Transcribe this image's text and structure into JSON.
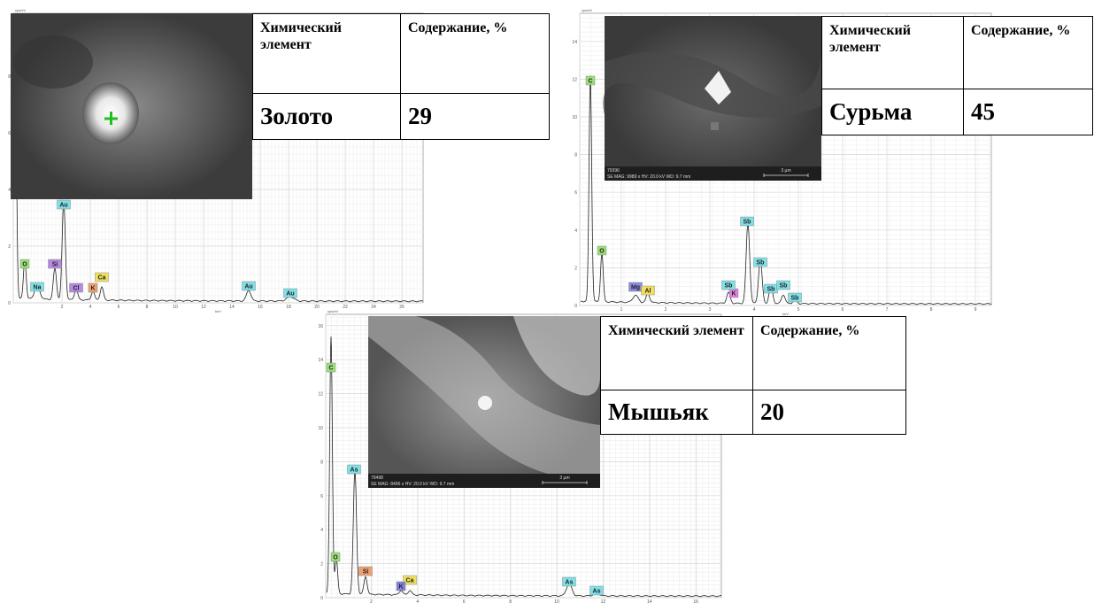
{
  "panels": [
    {
      "table": {
        "headers": [
          "Химический элемент",
          "Содержание, %"
        ],
        "element": "Золото",
        "content": 29
      },
      "image": null,
      "spectrum": {
        "y_unit": "cps/eV",
        "x_unit": "keV",
        "yticks": [
          0,
          2,
          4,
          6,
          8
        ],
        "xticks": [
          2,
          4,
          6,
          8,
          10,
          12,
          14,
          16,
          18,
          20,
          22,
          24,
          26
        ],
        "peaks": [
          {
            "label": "O",
            "color": "#9be07a"
          },
          {
            "label": "Na",
            "color": "#7fe0e6"
          },
          {
            "label": "Si",
            "color": "#b48be0"
          },
          {
            "label": "Au",
            "color": "#7fe0e6"
          },
          {
            "label": "Cl",
            "color": "#b48be0"
          },
          {
            "label": "K",
            "color": "#f0a070"
          },
          {
            "label": "Ca",
            "color": "#f0e060"
          },
          {
            "label": "Au",
            "color": "#7fe0e6"
          },
          {
            "label": "Au",
            "color": "#7fe0e6"
          }
        ]
      }
    },
    {
      "table": {
        "headers": [
          "Химический элемент",
          "Содержание, %"
        ],
        "element": "Сурьма",
        "content": 45
      },
      "image": {
        "id": "79396",
        "info": "SE MAG: 9989 x HV: 20.0 kV WD: 9.7 mm",
        "scale": "3 µm"
      },
      "spectrum": {
        "y_unit": "cps/eV",
        "x_unit": "keV",
        "yticks": [
          0,
          2,
          4,
          6,
          8,
          10,
          12,
          14
        ],
        "xticks": [
          1,
          2,
          3,
          4,
          5,
          6,
          7,
          8,
          9
        ],
        "peaks": [
          {
            "label": "C",
            "color": "#9be07a"
          },
          {
            "label": "O",
            "color": "#9be07a"
          },
          {
            "label": "Mg",
            "color": "#8c8ce6"
          },
          {
            "label": "Al",
            "color": "#f0e060"
          },
          {
            "label": "Sb",
            "color": "#7fe0e6"
          },
          {
            "label": "K",
            "color": "#e080e0"
          },
          {
            "label": "Sb",
            "color": "#7fe0e6"
          },
          {
            "label": "Sb",
            "color": "#7fe0e6"
          },
          {
            "label": "Sb",
            "color": "#7fe0e6"
          },
          {
            "label": "Sb",
            "color": "#7fe0e6"
          },
          {
            "label": "Sb",
            "color": "#7fe0e6"
          }
        ]
      }
    },
    {
      "table": {
        "headers": [
          "Химический элемент",
          "Содержание, %"
        ],
        "element": "Мышьяк",
        "content": 20
      },
      "image": {
        "id": "79498",
        "info": "SE MAG: 8496 x HV: 20.0 kV WD: 9.7 mm",
        "scale": "3 µm"
      },
      "spectrum": {
        "y_unit": "cps/eV",
        "x_unit": "keV",
        "yticks": [
          0,
          2,
          4,
          6,
          8,
          10,
          12,
          14,
          16
        ],
        "xticks": [
          2,
          4,
          6,
          8,
          10,
          12,
          14,
          16
        ],
        "peaks": [
          {
            "label": "C",
            "color": "#9be07a"
          },
          {
            "label": "As",
            "color": "#7fe0e6"
          },
          {
            "label": "O",
            "color": "#9be07a"
          },
          {
            "label": "Si",
            "color": "#f0a070"
          },
          {
            "label": "Ca",
            "color": "#f0e060"
          },
          {
            "label": "K",
            "color": "#8080e0"
          },
          {
            "label": "As",
            "color": "#7fe0e6"
          },
          {
            "label": "As",
            "color": "#7fe0e6"
          }
        ]
      }
    }
  ]
}
